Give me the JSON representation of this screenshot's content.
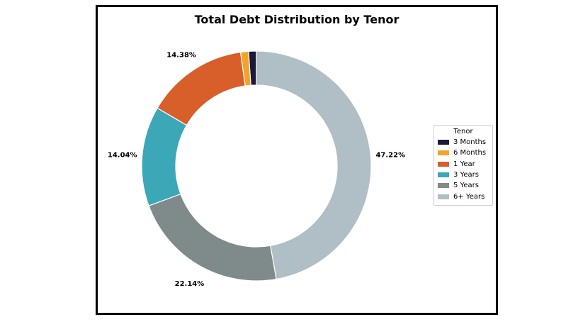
{
  "chart_data": {
    "type": "pie",
    "variant": "donut",
    "title": "Total Debt Distribution by Tenor",
    "legend_title": "Tenor",
    "legend_position": "right",
    "categories": [
      "3 Months",
      "6 Months",
      "1 Year",
      "3 Years",
      "5 Years",
      "6+ Years"
    ],
    "values": [
      1.1,
      1.12,
      14.38,
      14.04,
      22.14,
      47.22
    ],
    "data_labels": [
      "",
      "",
      "14.38%",
      "14.04%",
      "22.14%",
      "47.22%"
    ],
    "colors": [
      "#1b1a3c",
      "#f2a42a",
      "#d95f2a",
      "#3ba7b7",
      "#7f8b8b",
      "#b0bec5"
    ],
    "direction": "clockwise",
    "start": "top"
  }
}
